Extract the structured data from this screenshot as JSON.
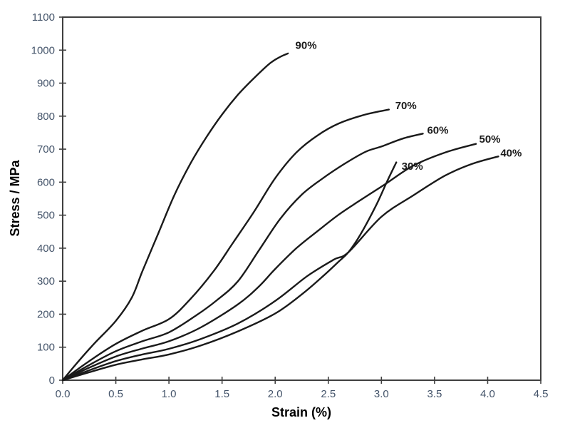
{
  "styles": {
    "background": "#ffffff",
    "curve_color": "#1a1a1a",
    "axis_color": "#3f3f3f",
    "tick_label_color": "#44546a",
    "axis_title_color": "#000000"
  },
  "chart_data": {
    "type": "line",
    "title": "",
    "grid": false,
    "legend": "inline labels at curve tips",
    "x_axis": {
      "title": "Strain (%)",
      "min": 0,
      "max": 4.5,
      "tick_values": [
        0,
        0.5,
        1.0,
        1.5,
        2.0,
        2.5,
        3.0,
        3.5,
        4.0,
        4.5
      ],
      "tick_labels": [
        "0.0",
        "0.5",
        "1.0",
        "1.5",
        "2.0",
        "2.5",
        "3.0",
        "3.5",
        "4.0",
        "4.5"
      ]
    },
    "y_axis": {
      "title": "Stress / MPa",
      "min": 0,
      "max": 1100,
      "tick_values": [
        0,
        100,
        200,
        300,
        400,
        500,
        600,
        700,
        800,
        900,
        1000,
        1100
      ],
      "tick_labels": [
        "0",
        "100",
        "200",
        "300",
        "400",
        "500",
        "600",
        "700",
        "800",
        "900",
        "1000",
        "1100"
      ]
    },
    "series": [
      {
        "name": "90%",
        "label_strain": 2.19,
        "label_stress": 1015,
        "points": [
          [
            0,
            0
          ],
          [
            0.15,
            58
          ],
          [
            0.3,
            112
          ],
          [
            0.5,
            180
          ],
          [
            0.65,
            250
          ],
          [
            0.75,
            330
          ],
          [
            0.9,
            445
          ],
          [
            1.05,
            560
          ],
          [
            1.2,
            655
          ],
          [
            1.35,
            735
          ],
          [
            1.5,
            805
          ],
          [
            1.65,
            865
          ],
          [
            1.8,
            915
          ],
          [
            1.95,
            960
          ],
          [
            2.05,
            980
          ],
          [
            2.12,
            990
          ]
        ]
      },
      {
        "name": "70%",
        "label_strain": 3.13,
        "label_stress": 832,
        "points": [
          [
            0,
            0
          ],
          [
            0.25,
            58
          ],
          [
            0.5,
            110
          ],
          [
            0.75,
            150
          ],
          [
            1.0,
            185
          ],
          [
            1.2,
            245
          ],
          [
            1.42,
            330
          ],
          [
            1.6,
            415
          ],
          [
            1.8,
            510
          ],
          [
            2.0,
            612
          ],
          [
            2.2,
            690
          ],
          [
            2.4,
            742
          ],
          [
            2.6,
            778
          ],
          [
            2.85,
            805
          ],
          [
            3.07,
            820
          ]
        ]
      },
      {
        "name": "60%",
        "label_strain": 3.43,
        "label_stress": 758,
        "points": [
          [
            0,
            0
          ],
          [
            0.25,
            46
          ],
          [
            0.5,
            88
          ],
          [
            0.75,
            118
          ],
          [
            1.0,
            145
          ],
          [
            1.25,
            195
          ],
          [
            1.45,
            242
          ],
          [
            1.65,
            300
          ],
          [
            1.85,
            395
          ],
          [
            2.05,
            490
          ],
          [
            2.25,
            562
          ],
          [
            2.45,
            612
          ],
          [
            2.65,
            655
          ],
          [
            2.85,
            692
          ],
          [
            3.0,
            708
          ],
          [
            3.2,
            732
          ],
          [
            3.39,
            747
          ]
        ]
      },
      {
        "name": "50%",
        "label_strain": 3.92,
        "label_stress": 730,
        "points": [
          [
            0,
            0
          ],
          [
            0.25,
            38
          ],
          [
            0.5,
            72
          ],
          [
            0.75,
            96
          ],
          [
            1.0,
            118
          ],
          [
            1.3,
            160
          ],
          [
            1.65,
            230
          ],
          [
            1.85,
            285
          ],
          [
            2.0,
            337
          ],
          [
            2.2,
            400
          ],
          [
            2.4,
            452
          ],
          [
            2.6,
            502
          ],
          [
            2.8,
            545
          ],
          [
            3.04,
            595
          ],
          [
            3.3,
            650
          ],
          [
            3.6,
            690
          ],
          [
            3.89,
            716
          ]
        ]
      },
      {
        "name": "40%",
        "label_strain": 4.12,
        "label_stress": 688,
        "points": [
          [
            0,
            0
          ],
          [
            0.25,
            30
          ],
          [
            0.5,
            58
          ],
          [
            0.75,
            78
          ],
          [
            1.0,
            95
          ],
          [
            1.3,
            125
          ],
          [
            1.65,
            172
          ],
          [
            2.0,
            240
          ],
          [
            2.3,
            315
          ],
          [
            2.55,
            365
          ],
          [
            2.69,
            388
          ],
          [
            3.0,
            495
          ],
          [
            3.3,
            560
          ],
          [
            3.6,
            620
          ],
          [
            3.85,
            655
          ],
          [
            4.1,
            678
          ]
        ]
      },
      {
        "name": "30%",
        "label_strain": 3.19,
        "label_stress": 648,
        "points": [
          [
            0,
            0
          ],
          [
            0.25,
            24
          ],
          [
            0.5,
            47
          ],
          [
            0.75,
            63
          ],
          [
            1.0,
            78
          ],
          [
            1.3,
            105
          ],
          [
            1.65,
            148
          ],
          [
            2.0,
            202
          ],
          [
            2.25,
            260
          ],
          [
            2.45,
            315
          ],
          [
            2.6,
            360
          ],
          [
            2.69,
            388
          ],
          [
            2.8,
            440
          ],
          [
            2.95,
            530
          ],
          [
            3.05,
            600
          ],
          [
            3.14,
            660
          ]
        ]
      }
    ]
  }
}
